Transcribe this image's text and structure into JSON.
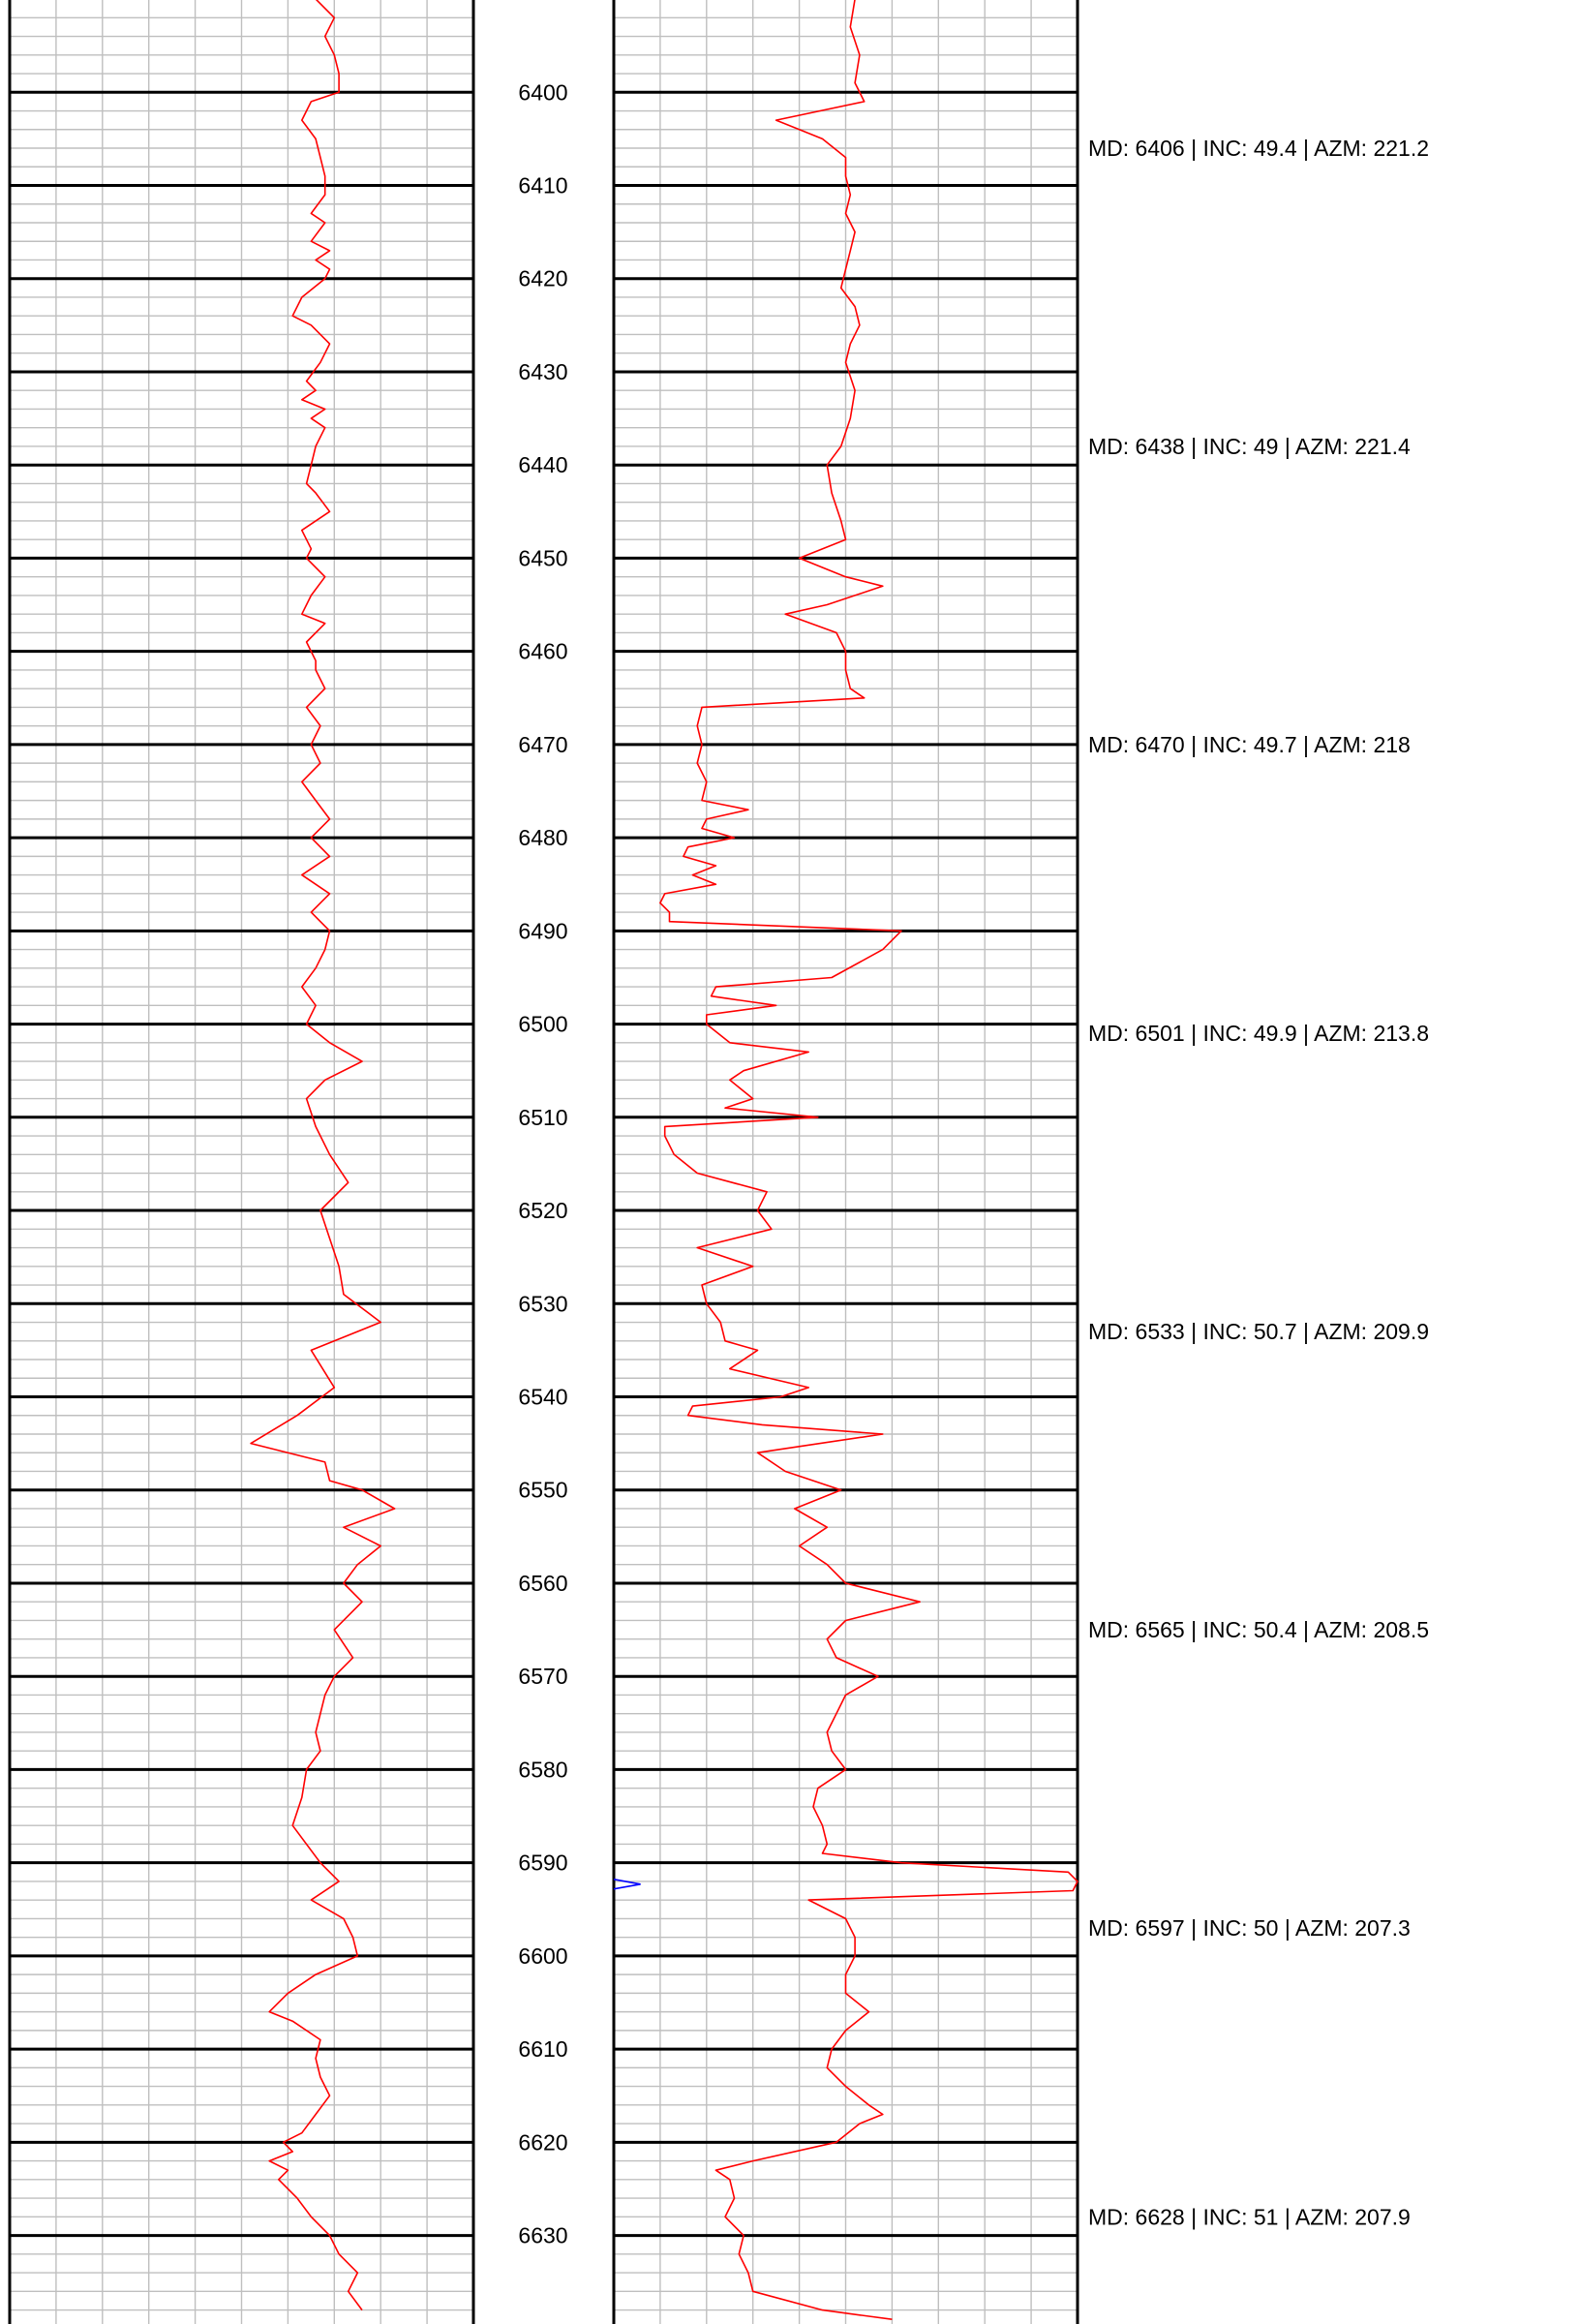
{
  "chart_data": {
    "type": "line",
    "depth_ticks": [
      6400,
      6410,
      6420,
      6430,
      6440,
      6450,
      6460,
      6470,
      6480,
      6490,
      6500,
      6510,
      6520,
      6530,
      6540,
      6550,
      6560,
      6570,
      6580,
      6590,
      6600,
      6610,
      6620,
      6630
    ],
    "depth_range": [
      6390.1,
      6639.5
    ],
    "grid": true,
    "colors": {
      "curve": "#ff0000",
      "marker": "#0000ff",
      "major_grid": "#000000",
      "minor_grid": "#bfbfbf"
    },
    "tracks": [
      {
        "value_range": [
          0,
          10
        ],
        "series": [
          {
            "depth": [
              6390,
              6392,
              6394,
              6396,
              6398,
              6400,
              6401,
              6403,
              6405,
              6407,
              6409,
              6411,
              6413,
              6414,
              6416,
              6417,
              6418,
              6419,
              6420,
              6422,
              6424,
              6425,
              6427,
              6429,
              6431,
              6432,
              6433,
              6434,
              6435,
              6436,
              6438,
              6440,
              6442,
              6443,
              6445,
              6447,
              6449,
              6450,
              6452,
              6454,
              6456,
              6457,
              6459,
              6461,
              6462,
              6464,
              6466,
              6468,
              6470,
              6472,
              6474,
              6476,
              6478,
              6480,
              6482,
              6484,
              6486,
              6488,
              6489,
              6490,
              6492,
              6494,
              6496,
              6498,
              6500,
              6502,
              6504,
              6506,
              6508,
              6511,
              6514,
              6517,
              6520,
              6523,
              6526,
              6529,
              6532,
              6535,
              6539,
              6542,
              6545,
              6547,
              6549,
              6550,
              6552,
              6554,
              6556,
              6558,
              6560,
              6562,
              6565,
              6568,
              6570,
              6572,
              6574,
              6576,
              6578,
              6580,
              6583,
              6586,
              6590,
              6592,
              6594,
              6596,
              6598,
              6600,
              6602,
              6604,
              6606,
              6607,
              6609,
              6611,
              6613,
              6615,
              6617,
              6619,
              6620,
              6621,
              6622,
              6623,
              6624,
              6626,
              6628,
              6630,
              6632,
              6634,
              6636,
              6638
            ],
            "value": [
              6.6,
              7.0,
              6.8,
              7.0,
              7.1,
              7.1,
              6.5,
              6.3,
              6.6,
              6.7,
              6.8,
              6.8,
              6.5,
              6.8,
              6.5,
              6.9,
              6.6,
              6.9,
              6.8,
              6.3,
              6.1,
              6.5,
              6.9,
              6.7,
              6.4,
              6.6,
              6.3,
              6.8,
              6.5,
              6.8,
              6.6,
              6.5,
              6.4,
              6.6,
              6.9,
              6.3,
              6.5,
              6.4,
              6.8,
              6.5,
              6.3,
              6.8,
              6.4,
              6.6,
              6.6,
              6.8,
              6.4,
              6.7,
              6.5,
              6.7,
              6.3,
              6.6,
              6.9,
              6.5,
              6.9,
              6.3,
              6.9,
              6.5,
              6.7,
              6.9,
              6.8,
              6.6,
              6.3,
              6.6,
              6.4,
              6.9,
              7.6,
              6.8,
              6.4,
              6.6,
              6.9,
              7.3,
              6.7,
              6.9,
              7.1,
              7.2,
              8.0,
              6.5,
              7.0,
              6.2,
              5.2,
              6.8,
              6.9,
              7.6,
              8.3,
              7.2,
              8.0,
              7.5,
              7.2,
              7.6,
              7.0,
              7.4,
              7.0,
              6.8,
              6.7,
              6.6,
              6.7,
              6.4,
              6.3,
              6.1,
              6.7,
              7.1,
              6.5,
              7.2,
              7.4,
              7.5,
              6.6,
              6.0,
              5.6,
              6.1,
              6.7,
              6.6,
              6.7,
              6.9,
              6.6,
              6.3,
              5.9,
              6.1,
              5.6,
              6.0,
              5.8,
              6.2,
              6.5,
              6.9,
              7.1,
              7.5,
              7.3,
              7.6
            ]
          }
        ]
      },
      {
        "value_range": [
          0,
          10
        ],
        "series": [
          {
            "depth": [
              6390,
              6393,
              6396,
              6399,
              6401,
              6403,
              6405,
              6407,
              6409,
              6411,
              6413,
              6415,
              6417,
              6419,
              6421,
              6423,
              6425,
              6427,
              6429,
              6432,
              6435,
              6438,
              6440,
              6443,
              6446,
              6448,
              6450,
              6452,
              6453,
              6455,
              6456,
              6458,
              6460,
              6462,
              6464,
              6465,
              6466,
              6468,
              6470,
              6472,
              6474,
              6476,
              6477,
              6478,
              6479,
              6480,
              6481,
              6482,
              6483,
              6484,
              6485,
              6486,
              6487,
              6488,
              6489,
              6490,
              6492,
              6495,
              6496,
              6497,
              6498,
              6499,
              6500,
              6502,
              6503,
              6505,
              6506,
              6508,
              6509,
              6510,
              6511,
              6512,
              6514,
              6516,
              6518,
              6520,
              6522,
              6524,
              6526,
              6528,
              6530,
              6532,
              6534,
              6535,
              6537,
              6539,
              6540,
              6541,
              6542,
              6543,
              6544,
              6546,
              6548,
              6550,
              6552,
              6554,
              6556,
              6558,
              6560,
              6562,
              6564,
              6566,
              6568,
              6570,
              6572,
              6574,
              6576,
              6578,
              6580,
              6582,
              6584,
              6586,
              6588,
              6589,
              6590,
              6591,
              6592,
              6593,
              6594,
              6596,
              6598,
              6600,
              6602,
              6604,
              6606,
              6608,
              6610,
              6612,
              6614,
              6616,
              6617,
              6618,
              6620,
              6622,
              6623,
              6624,
              6626,
              6628,
              6630,
              6632,
              6634,
              6636,
              6638,
              6639
            ],
            "value": [
              5.2,
              5.1,
              5.3,
              5.2,
              5.4,
              3.5,
              4.5,
              5.0,
              5.0,
              5.1,
              5.0,
              5.2,
              5.1,
              5.0,
              4.9,
              5.2,
              5.3,
              5.1,
              5.0,
              5.2,
              5.1,
              4.9,
              4.6,
              4.7,
              4.9,
              5.0,
              4.0,
              5.0,
              5.8,
              4.6,
              3.7,
              4.8,
              5.0,
              5.0,
              5.1,
              5.4,
              1.9,
              1.8,
              1.9,
              1.8,
              2.0,
              1.9,
              2.9,
              2.0,
              1.9,
              2.6,
              1.6,
              1.5,
              2.2,
              1.7,
              2.2,
              1.1,
              1.0,
              1.2,
              1.2,
              6.2,
              5.8,
              4.7,
              2.2,
              2.1,
              3.5,
              2.0,
              2.0,
              2.5,
              4.2,
              2.8,
              2.5,
              3.0,
              2.4,
              4.4,
              1.1,
              1.1,
              1.3,
              1.8,
              3.3,
              3.1,
              3.4,
              1.8,
              3.0,
              1.9,
              2.0,
              2.3,
              2.4,
              3.1,
              2.5,
              4.2,
              3.6,
              1.7,
              1.6,
              3.2,
              5.8,
              3.1,
              3.7,
              4.9,
              3.9,
              4.6,
              4.0,
              4.6,
              5.0,
              6.6,
              5.0,
              4.6,
              4.8,
              5.7,
              5.0,
              4.8,
              4.6,
              4.7,
              5.0,
              4.4,
              4.3,
              4.5,
              4.6,
              4.5,
              6.2,
              9.8,
              10.0,
              9.9,
              4.2,
              5.0,
              5.2,
              5.2,
              5.0,
              5.0,
              5.5,
              5.0,
              4.7,
              4.6,
              5.0,
              5.5,
              5.8,
              5.3,
              4.8,
              3.0,
              2.2,
              2.5,
              2.6,
              2.4,
              2.8,
              2.7,
              2.9,
              3.0,
              4.5,
              6.0,
              7.0,
              7.3
            ]
          }
        ],
        "markers": [
          {
            "depth": 6592.3,
            "value": 0.2
          }
        ]
      }
    ],
    "annotations": [
      {
        "depth": 6406,
        "text": "MD: 6406 | INC: 49.4 | AZM: 221.2"
      },
      {
        "depth": 6438,
        "text": "MD: 6438 | INC: 49 | AZM: 221.4"
      },
      {
        "depth": 6470,
        "text": "MD: 6470 | INC: 49.7 | AZM: 218"
      },
      {
        "depth": 6501,
        "text": "MD: 6501 | INC: 49.9 | AZM: 213.8"
      },
      {
        "depth": 6533,
        "text": "MD: 6533 | INC: 50.7 | AZM: 209.9"
      },
      {
        "depth": 6565,
        "text": "MD: 6565 | INC: 50.4 | AZM: 208.5"
      },
      {
        "depth": 6597,
        "text": "MD: 6597 | INC: 50 | AZM: 207.3"
      },
      {
        "depth": 6628,
        "text": "MD: 6628 | INC: 51 | AZM: 207.9"
      }
    ]
  }
}
